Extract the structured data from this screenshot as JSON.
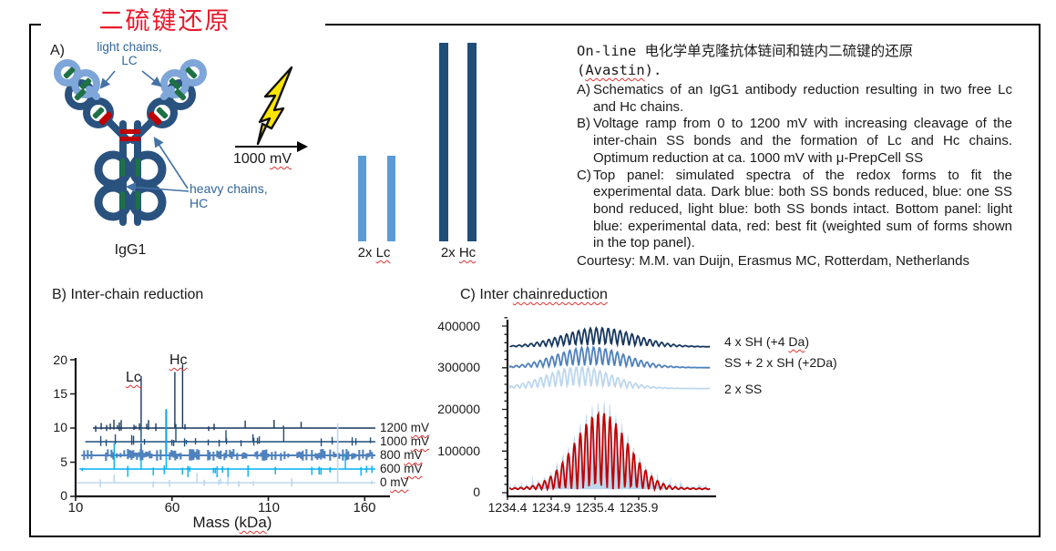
{
  "slide": {
    "title": "二硫键还原"
  },
  "panelA": {
    "label": "A)",
    "light_chains": [
      "light chains,",
      "LC"
    ],
    "heavy_chains": [
      "heavy chains,",
      "HC"
    ],
    "molecule": "IgG1",
    "voltage_label": [
      {
        "t": "1000 "
      },
      {
        "t": "mV",
        "u": 1
      }
    ],
    "lc_bars_label": [
      {
        "t": "2x "
      },
      {
        "t": "Lc",
        "u": 1
      }
    ],
    "hc_bars_label": [
      {
        "t": "2x "
      },
      {
        "t": "Hc",
        "u": 1
      }
    ],
    "colors": {
      "heavy_chain": "#2A527F",
      "light_chain": "#7EA6D8",
      "intra_ss_green": "#1E7145",
      "inter_ss_red": "#C00000",
      "bolt_yellow": "#FFE600",
      "lc_bar": "#5B9BD5",
      "hc_bar": "#1F4E79",
      "annotation_blue": "#31659C",
      "title_red": "#E8192C"
    }
  },
  "caption": {
    "line1": "On-line 电化学单克隆抗体链间和链内二硫键的还原",
    "line2": [
      {
        "t": "("
      },
      {
        "t": "Avastin",
        "u": 1
      },
      {
        "t": ")."
      }
    ],
    "items": [
      {
        "marker": "A)",
        "text": "Schematics of an IgG1 antibody reduction resulting in two free Lc and Hc chains."
      },
      {
        "marker": "B)",
        "text": "Voltage ramp from 0 to 1200 mV with increasing cleavage of the inter-chain SS bonds and the formation of Lc and Hc chains. Optimum reduction at ca. 1000 mV with μ-PrepCell SS"
      },
      {
        "marker": "C)",
        "text": "Top panel: simulated spectra of the redox forms to fit the experimental data. Dark blue: both SS bonds reduced, blue: one SS bond reduced, light blue: both SS bonds intact. Bottom panel: light blue: experimental data, red: best fit (weighted sum of forms shown in the top panel)."
      }
    ],
    "courtesy": "Courtesy: M.M. van Duijn, Erasmus MC, Rotterdam, Netherlands"
  },
  "chart_data": [
    {
      "id": "B",
      "type": "line",
      "heading": "B) Inter-chain reduction",
      "xlabel_segments": [
        {
          "t": "Mass ("
        },
        {
          "t": "kDa",
          "u": 1
        },
        {
          "t": ")"
        }
      ],
      "x_ticks": [
        "10",
        "60",
        "110",
        "160"
      ],
      "x_range": [
        10,
        170
      ],
      "y_ticks": [
        "20",
        "15",
        "10",
        "5",
        "0"
      ],
      "y_range": [
        0,
        20
      ],
      "xlabel": "Mass (kDa)",
      "peak_annotations": [
        {
          "text": "Lc",
          "mass": 44
        },
        {
          "text": "Hc",
          "mass": 65
        }
      ],
      "series": [
        {
          "label": [
            {
              "t": "1200 "
            },
            {
              "t": "mV",
              "u": 1
            }
          ],
          "color": "#17375E",
          "baseline": 10,
          "start_mass": 19,
          "w": 1.4,
          "noise_p": 0.05,
          "up": 0.9,
          "down": 0.45,
          "cluster": {
            "from": 20,
            "to": 48,
            "p": 0.5,
            "up": 1.25,
            "down": 0.55
          },
          "peaks": [
            [
              44,
              7.6
            ],
            [
              61.5,
              8.2
            ],
            [
              65.5,
              9.3
            ],
            [
              98,
              1.1
            ],
            [
              113,
              1.2
            ],
            [
              127,
              0.9
            ]
          ]
        },
        {
          "label": [
            {
              "t": "1000 "
            },
            {
              "t": "mV",
              "u": 1
            }
          ],
          "color": "#1F4E79",
          "baseline": 8,
          "start_mass": 15,
          "w": 1.4,
          "noise_p": 0.12,
          "up": 0.85,
          "down": 0.7,
          "cluster": {
            "from": 20,
            "to": 42,
            "p": 0.28,
            "up": 1.1,
            "down": 0.8
          },
          "peaks": [
            [
              44,
              2.3
            ],
            [
              62,
              2.6
            ],
            [
              88,
              1.7
            ],
            [
              102,
              1.1
            ],
            [
              118,
              1.9
            ]
          ]
        },
        {
          "label": [
            {
              "t": "800 "
            },
            {
              "t": "mV",
              "u": 1
            }
          ],
          "color": "#4F81BD",
          "baseline": 6,
          "start_mass": 13,
          "w": 2.1,
          "noise_p": 0.62,
          "up": 0.95,
          "down": 0.8,
          "cluster": null,
          "peaks": [
            [
              57,
              6.6
            ],
            [
              44,
              1.8
            ]
          ]
        },
        {
          "label": [
            {
              "t": "600 "
            },
            {
              "t": "mV",
              "u": 1
            }
          ],
          "color": "#00B0F0",
          "baseline": 4,
          "start_mass": 12,
          "w": 1.4,
          "noise_p": 0.16,
          "up": 0.55,
          "down": 1.25,
          "cluster": null,
          "peaks": [
            [
              30,
              3.8
            ],
            [
              57,
              8.8
            ],
            [
              150,
              2.2
            ],
            [
              44,
              1.5
            ]
          ]
        },
        {
          "label": [
            {
              "t": "0 "
            },
            {
              "t": "mV",
              "u": 1
            }
          ],
          "color": "#BDD7EE",
          "baseline": 2,
          "start_mass": 11,
          "w": 1.6,
          "noise_p": 0.11,
          "up": 0.7,
          "down": 0.75,
          "cluster": null,
          "peaks": [
            [
              146,
              8.7
            ],
            [
              73,
              1.4
            ],
            [
              30,
              1.2
            ]
          ]
        }
      ]
    },
    {
      "id": "C",
      "type": "line",
      "heading_segments": [
        {
          "t": "C) Inter "
        },
        {
          "t": "chainreduction",
          "u": 1
        }
      ],
      "x_ticks": [
        "1234.4",
        "1234.9",
        "1235.4",
        "1235.9"
      ],
      "y_ticks": [
        "400000",
        "300000",
        "200000",
        "100000",
        "0"
      ],
      "y_range": [
        0,
        400000
      ],
      "top_series": [
        {
          "label": [
            {
              "t": "4 x SH (+4 "
            },
            {
              "t": "Da",
              "u": 1
            },
            {
              "t": ")"
            }
          ],
          "color": "#17375E",
          "baseline": 350000,
          "center": 1235.45,
          "sigma": 0.42,
          "amp": 46000
        },
        {
          "label": [
            {
              "t": "SS + 2 x SH (+2Da)"
            }
          ],
          "color": "#4F81BD",
          "baseline": 300000,
          "center": 1235.35,
          "sigma": 0.4,
          "amp": 50000
        },
        {
          "label": [
            {
              "t": "2 x SS"
            }
          ],
          "color": "#BDD7EE",
          "baseline": 250000,
          "center": 1235.22,
          "sigma": 0.38,
          "amp": 52000
        }
      ],
      "bottom": {
        "experimental": {
          "color": "#BDD7EE",
          "amp": 208000
        },
        "fit": {
          "color": "#C00000",
          "amp": 183000
        },
        "center": 1235.47,
        "sigma": 0.3,
        "baseline": 8000,
        "period_da": 0.068
      }
    }
  ]
}
